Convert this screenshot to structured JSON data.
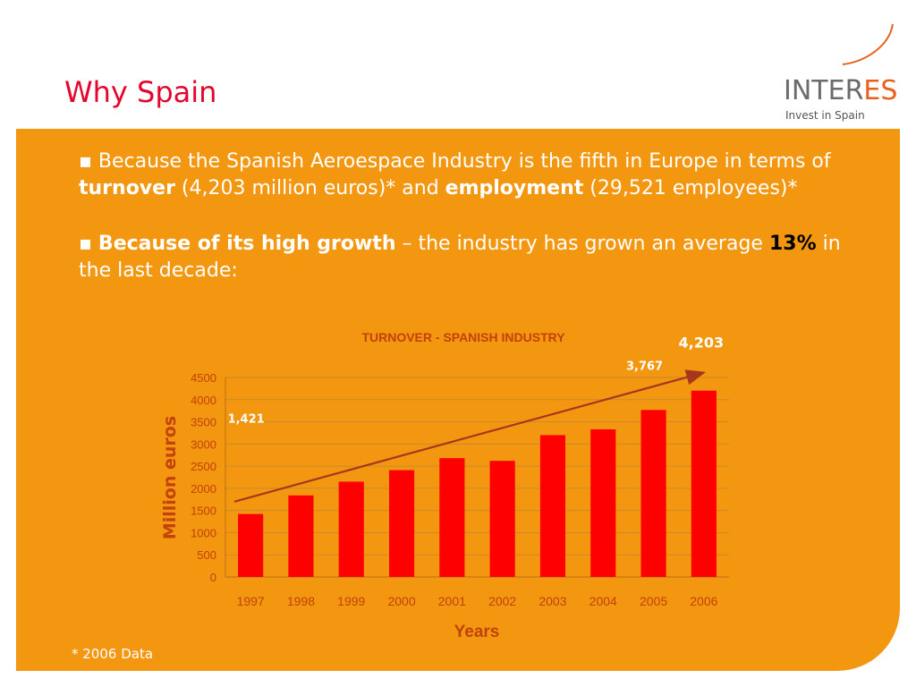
{
  "slide": {
    "title": "Why Spain",
    "footnote": "* 2006 Data"
  },
  "logo": {
    "wordmark_main": "INTER",
    "wordmark_accent": "ES",
    "tagline": "Invest in Spain"
  },
  "bullets": [
    {
      "marker": "▪",
      "t1": " Because the Spanish Aeroespace Industry is the fifth in Europe in terms of ",
      "b1": "turnover",
      "t2": " (4,203 million euros)* and ",
      "b2": "employment",
      "t3": " (29,521 employees)*"
    },
    {
      "marker": "▪",
      "b1": "Because of its high growth",
      "t1": " – the industry has grown an average ",
      "b2": "13%",
      "t2": " in the last decade:"
    }
  ],
  "colors": {
    "panel": "#f39711",
    "title": "#e3062d",
    "bar": "#ff0000",
    "trend": "#a8361b",
    "axis_text": "#c2410c"
  },
  "chart_data": {
    "type": "bar",
    "title": "TURNOVER - SPANISH INDUSTRY",
    "xlabel": "Years",
    "ylabel": "Million euros",
    "categories": [
      "1997",
      "1998",
      "1999",
      "2000",
      "2001",
      "2002",
      "2003",
      "2004",
      "2005",
      "2006"
    ],
    "values": [
      1421,
      1840,
      2150,
      2410,
      2680,
      2620,
      3200,
      3330,
      3767,
      4203
    ],
    "ylim": [
      0,
      4500
    ],
    "yticks": [
      0,
      500,
      1000,
      1500,
      2000,
      2500,
      3000,
      3500,
      4000,
      4500
    ],
    "grid": true,
    "legend": "none",
    "annotations": [
      {
        "text": "1,421",
        "category": "1997"
      },
      {
        "text": "3,767",
        "category": "2005"
      },
      {
        "text": "4,203",
        "category": "2006"
      }
    ],
    "trend_line": {
      "from_value": 1700,
      "to_value": 4600
    }
  }
}
